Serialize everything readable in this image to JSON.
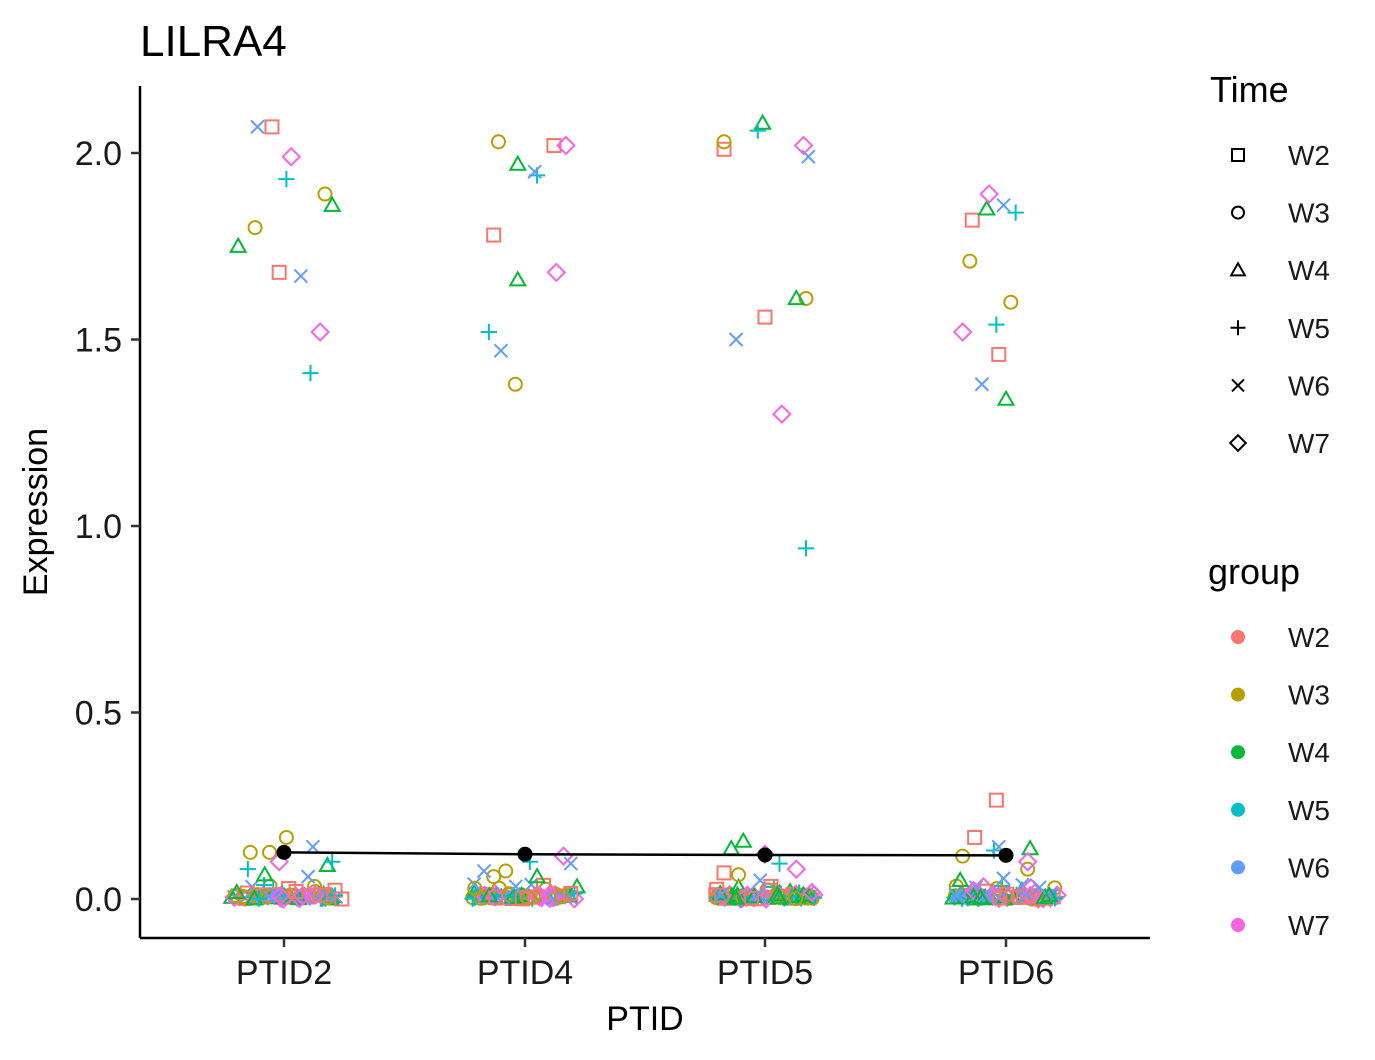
{
  "chart_data": {
    "type": "scatter",
    "title": "LILRA4",
    "xlabel": "PTID",
    "ylabel": "Expression",
    "categories": [
      "PTID2",
      "PTID4",
      "PTID5",
      "PTID6"
    ],
    "ylim": [
      -0.1,
      2.18
    ],
    "yticks": [
      "0.0",
      "0.5",
      "1.0",
      "1.5",
      "2.0"
    ],
    "grid": false,
    "legend_position": "right",
    "shape_legend": {
      "title": "Time",
      "items": [
        {
          "label": "W2",
          "shape": "square"
        },
        {
          "label": "W3",
          "shape": "circle"
        },
        {
          "label": "W4",
          "shape": "triangle"
        },
        {
          "label": "W5",
          "shape": "plus"
        },
        {
          "label": "W6",
          "shape": "cross"
        },
        {
          "label": "W7",
          "shape": "diamond"
        }
      ]
    },
    "color_legend": {
      "title": "group",
      "items": [
        {
          "label": "W2",
          "color": "#F8766D"
        },
        {
          "label": "W3",
          "color": "#B79F00"
        },
        {
          "label": "W4",
          "color": "#00BA38"
        },
        {
          "label": "W5",
          "color": "#00BFC4"
        },
        {
          "label": "W6",
          "color": "#619CFF"
        },
        {
          "label": "W7",
          "color": "#F564E3"
        }
      ]
    },
    "mean_line": {
      "color": "#000000",
      "x": [
        "PTID2",
        "PTID4",
        "PTID5",
        "PTID6"
      ],
      "y": [
        0.125,
        0.12,
        0.118,
        0.117
      ]
    },
    "points": [
      {
        "x": "PTID2",
        "dx": -0.05,
        "y": 2.07,
        "t": "W2"
      },
      {
        "x": "PTID2",
        "dx": -0.02,
        "y": 1.68,
        "t": "W2"
      },
      {
        "x": "PTID2",
        "dx": 0.24,
        "y": 0.0,
        "t": "W2"
      },
      {
        "x": "PTID2",
        "dx": 0.05,
        "y": 0.02,
        "t": "W2"
      },
      {
        "x": "PTID2",
        "dx": -0.12,
        "y": 1.8,
        "t": "W3"
      },
      {
        "x": "PTID2",
        "dx": 0.17,
        "y": 1.89,
        "t": "W3"
      },
      {
        "x": "PTID2",
        "dx": -0.14,
        "y": 0.125,
        "t": "W3"
      },
      {
        "x": "PTID2",
        "dx": -0.06,
        "y": 0.125,
        "t": "W3"
      },
      {
        "x": "PTID2",
        "dx": 0.01,
        "y": 0.165,
        "t": "W3"
      },
      {
        "x": "PTID2",
        "dx": -0.19,
        "y": 1.75,
        "t": "W4"
      },
      {
        "x": "PTID2",
        "dx": 0.2,
        "y": 1.86,
        "t": "W4"
      },
      {
        "x": "PTID2",
        "dx": -0.08,
        "y": 0.065,
        "t": "W4"
      },
      {
        "x": "PTID2",
        "dx": 0.18,
        "y": 0.09,
        "t": "W4"
      },
      {
        "x": "PTID2",
        "dx": 0.01,
        "y": 1.93,
        "t": "W5"
      },
      {
        "x": "PTID2",
        "dx": 0.11,
        "y": 1.41,
        "t": "W5"
      },
      {
        "x": "PTID2",
        "dx": -0.15,
        "y": 0.08,
        "t": "W5"
      },
      {
        "x": "PTID2",
        "dx": 0.2,
        "y": 0.1,
        "t": "W5"
      },
      {
        "x": "PTID2",
        "dx": -0.11,
        "y": 2.07,
        "t": "W6"
      },
      {
        "x": "PTID2",
        "dx": 0.07,
        "y": 1.67,
        "t": "W6"
      },
      {
        "x": "PTID2",
        "dx": 0.12,
        "y": 0.14,
        "t": "W6"
      },
      {
        "x": "PTID2",
        "dx": 0.1,
        "y": 0.06,
        "t": "W6"
      },
      {
        "x": "PTID2",
        "dx": 0.03,
        "y": 1.99,
        "t": "W7"
      },
      {
        "x": "PTID2",
        "dx": 0.15,
        "y": 1.52,
        "t": "W7"
      },
      {
        "x": "PTID2",
        "dx": -0.02,
        "y": 0.1,
        "t": "W7"
      },
      {
        "x": "PTID4",
        "dx": 0.12,
        "y": 2.02,
        "t": "W2"
      },
      {
        "x": "PTID4",
        "dx": -0.13,
        "y": 1.78,
        "t": "W2"
      },
      {
        "x": "PTID4",
        "dx": 0.19,
        "y": 0.015,
        "t": "W2"
      },
      {
        "x": "PTID4",
        "dx": -0.11,
        "y": 2.03,
        "t": "W3"
      },
      {
        "x": "PTID4",
        "dx": -0.04,
        "y": 1.38,
        "t": "W3"
      },
      {
        "x": "PTID4",
        "dx": -0.13,
        "y": 0.06,
        "t": "W3"
      },
      {
        "x": "PTID4",
        "dx": -0.08,
        "y": 0.075,
        "t": "W3"
      },
      {
        "x": "PTID4",
        "dx": -0.03,
        "y": 1.97,
        "t": "W4"
      },
      {
        "x": "PTID4",
        "dx": -0.03,
        "y": 1.66,
        "t": "W4"
      },
      {
        "x": "PTID4",
        "dx": 0.05,
        "y": 0.06,
        "t": "W4"
      },
      {
        "x": "PTID4",
        "dx": 0.05,
        "y": 1.94,
        "t": "W5"
      },
      {
        "x": "PTID4",
        "dx": -0.15,
        "y": 1.52,
        "t": "W5"
      },
      {
        "x": "PTID4",
        "dx": 0.02,
        "y": 0.1,
        "t": "W5"
      },
      {
        "x": "PTID4",
        "dx": 0.04,
        "y": 1.95,
        "t": "W6"
      },
      {
        "x": "PTID4",
        "dx": -0.1,
        "y": 1.47,
        "t": "W6"
      },
      {
        "x": "PTID4",
        "dx": -0.17,
        "y": 0.075,
        "t": "W6"
      },
      {
        "x": "PTID4",
        "dx": 0.19,
        "y": 0.095,
        "t": "W6"
      },
      {
        "x": "PTID4",
        "dx": 0.17,
        "y": 2.02,
        "t": "W7"
      },
      {
        "x": "PTID4",
        "dx": 0.13,
        "y": 1.68,
        "t": "W7"
      },
      {
        "x": "PTID4",
        "dx": 0.16,
        "y": 0.115,
        "t": "W7"
      },
      {
        "x": "PTID5",
        "dx": -0.17,
        "y": 2.01,
        "t": "W2"
      },
      {
        "x": "PTID5",
        "dx": 0.0,
        "y": 1.56,
        "t": "W2"
      },
      {
        "x": "PTID5",
        "dx": -0.17,
        "y": 0.07,
        "t": "W2"
      },
      {
        "x": "PTID5",
        "dx": -0.17,
        "y": 2.03,
        "t": "W3"
      },
      {
        "x": "PTID5",
        "dx": 0.17,
        "y": 1.61,
        "t": "W3"
      },
      {
        "x": "PTID5",
        "dx": -0.11,
        "y": 0.065,
        "t": "W3"
      },
      {
        "x": "PTID5",
        "dx": -0.01,
        "y": 2.08,
        "t": "W4"
      },
      {
        "x": "PTID5",
        "dx": 0.13,
        "y": 1.61,
        "t": "W4"
      },
      {
        "x": "PTID5",
        "dx": -0.09,
        "y": 0.155,
        "t": "W4"
      },
      {
        "x": "PTID5",
        "dx": -0.14,
        "y": 0.135,
        "t": "W4"
      },
      {
        "x": "PTID5",
        "dx": -0.03,
        "y": 2.06,
        "t": "W5"
      },
      {
        "x": "PTID5",
        "dx": 0.17,
        "y": 0.94,
        "t": "W5"
      },
      {
        "x": "PTID5",
        "dx": 0.06,
        "y": 0.095,
        "t": "W5"
      },
      {
        "x": "PTID5",
        "dx": 0.18,
        "y": 1.99,
        "t": "W6"
      },
      {
        "x": "PTID5",
        "dx": -0.12,
        "y": 1.5,
        "t": "W6"
      },
      {
        "x": "PTID5",
        "dx": -0.02,
        "y": 0.05,
        "t": "W6"
      },
      {
        "x": "PTID5",
        "dx": 0.16,
        "y": 2.02,
        "t": "W7"
      },
      {
        "x": "PTID5",
        "dx": 0.07,
        "y": 1.3,
        "t": "W7"
      },
      {
        "x": "PTID5",
        "dx": 0.13,
        "y": 0.08,
        "t": "W7"
      },
      {
        "x": "PTID5",
        "dx": 0.0,
        "y": 0.12,
        "t": "W7"
      },
      {
        "x": "PTID6",
        "dx": -0.14,
        "y": 1.82,
        "t": "W2"
      },
      {
        "x": "PTID6",
        "dx": -0.03,
        "y": 1.46,
        "t": "W2"
      },
      {
        "x": "PTID6",
        "dx": -0.04,
        "y": 0.265,
        "t": "W2"
      },
      {
        "x": "PTID6",
        "dx": -0.13,
        "y": 0.165,
        "t": "W2"
      },
      {
        "x": "PTID6",
        "dx": -0.15,
        "y": 1.71,
        "t": "W3"
      },
      {
        "x": "PTID6",
        "dx": 0.02,
        "y": 1.6,
        "t": "W3"
      },
      {
        "x": "PTID6",
        "dx": -0.18,
        "y": 0.115,
        "t": "W3"
      },
      {
        "x": "PTID6",
        "dx": 0.09,
        "y": 0.08,
        "t": "W3"
      },
      {
        "x": "PTID6",
        "dx": -0.08,
        "y": 1.85,
        "t": "W4"
      },
      {
        "x": "PTID6",
        "dx": 0.0,
        "y": 1.34,
        "t": "W4"
      },
      {
        "x": "PTID6",
        "dx": 0.1,
        "y": 0.135,
        "t": "W4"
      },
      {
        "x": "PTID6",
        "dx": -0.19,
        "y": 0.05,
        "t": "W4"
      },
      {
        "x": "PTID6",
        "dx": 0.04,
        "y": 1.84,
        "t": "W5"
      },
      {
        "x": "PTID6",
        "dx": -0.04,
        "y": 1.54,
        "t": "W5"
      },
      {
        "x": "PTID6",
        "dx": -0.05,
        "y": 0.13,
        "t": "W5"
      },
      {
        "x": "PTID6",
        "dx": -0.01,
        "y": 1.86,
        "t": "W6"
      },
      {
        "x": "PTID6",
        "dx": -0.1,
        "y": 1.38,
        "t": "W6"
      },
      {
        "x": "PTID6",
        "dx": -0.03,
        "y": 0.14,
        "t": "W6"
      },
      {
        "x": "PTID6",
        "dx": -0.01,
        "y": 0.055,
        "t": "W6"
      },
      {
        "x": "PTID6",
        "dx": -0.07,
        "y": 1.89,
        "t": "W7"
      },
      {
        "x": "PTID6",
        "dx": -0.18,
        "y": 1.52,
        "t": "W7"
      },
      {
        "x": "PTID6",
        "dx": 0.09,
        "y": 0.1,
        "t": "W7"
      }
    ]
  }
}
